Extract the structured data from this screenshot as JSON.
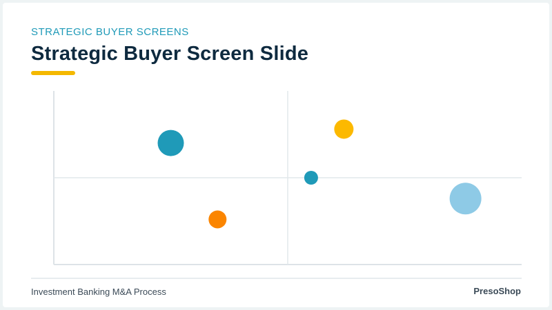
{
  "slide": {
    "eyebrow": "STRATEGIC BUYER SCREENS",
    "title": "Strategic Buyer Screen Slide",
    "accent_color": "#f4b800"
  },
  "footer": {
    "left": "Investment Banking M&A Process",
    "right": "PresoShop"
  },
  "chart_data": {
    "type": "scatter",
    "title": "",
    "xlabel": "",
    "ylabel": "",
    "xlim": [
      0,
      100
    ],
    "ylim": [
      0,
      100
    ],
    "grid": false,
    "quadrant_divider": {
      "x": 50,
      "y": 50
    },
    "points": [
      {
        "x": 25,
        "y": 70,
        "size": 19,
        "color": "#1f9ab8"
      },
      {
        "x": 62,
        "y": 78,
        "size": 14,
        "color": "#fcb900"
      },
      {
        "x": 55,
        "y": 50,
        "size": 10,
        "color": "#1f9ab8"
      },
      {
        "x": 88,
        "y": 38,
        "size": 23,
        "color": "#8ecae6"
      },
      {
        "x": 35,
        "y": 26,
        "size": 13,
        "color": "#fb8500"
      }
    ]
  }
}
